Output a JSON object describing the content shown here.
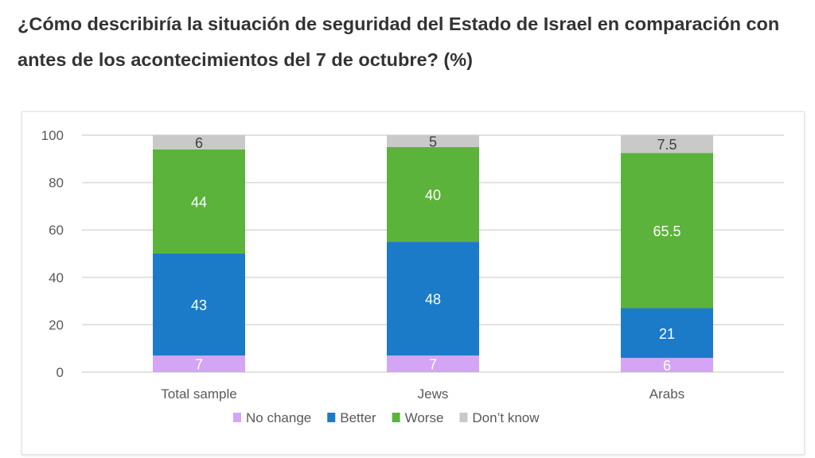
{
  "chart_data": {
    "type": "bar",
    "stacked": true,
    "title": "¿Cómo describiría la situación de seguridad del Estado de Israel en comparación con antes de los acontecimientos del 7 de octubre? (%)",
    "categories": [
      "Total sample",
      "Jews",
      "Arabs"
    ],
    "series": [
      {
        "name": "No change",
        "values": [
          7,
          7,
          6
        ],
        "color": "#d4a5f5",
        "label_color": "#ffffff"
      },
      {
        "name": "Better",
        "values": [
          43,
          48,
          21
        ],
        "color": "#1b7bc9",
        "label_color": "#ffffff"
      },
      {
        "name": "Worse",
        "values": [
          44,
          40,
          65.5
        ],
        "color": "#5cb33b",
        "label_color": "#ffffff"
      },
      {
        "name": "Don’t know",
        "values": [
          6,
          5,
          7.5
        ],
        "color": "#c9c9c9",
        "label_color": "#404040"
      }
    ],
    "ylim": [
      0,
      100
    ],
    "yticks": [
      0,
      20,
      40,
      60,
      80,
      100
    ],
    "grid": true,
    "legend": "bottom"
  }
}
